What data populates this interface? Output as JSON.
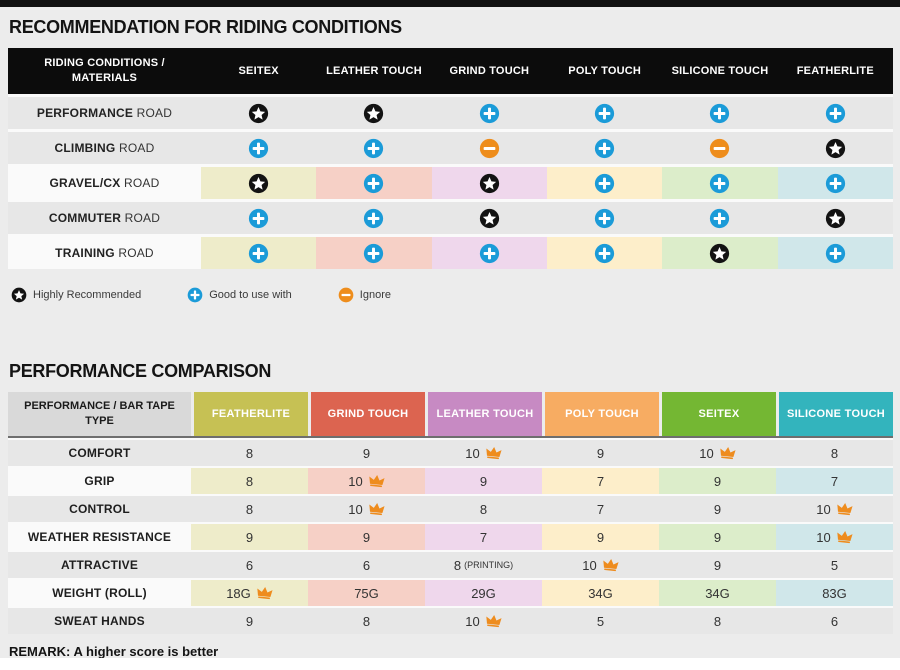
{
  "remark": "REMARK: A higher score is better",
  "icon_colors": {
    "star": "#131313",
    "plus": "#1b9bd8",
    "minus": "#ee8d1c",
    "crown": "#ee8c1e"
  },
  "legend": [
    {
      "icon": "star",
      "label": "Highly Recommended"
    },
    {
      "icon": "plus",
      "label": "Good to use with"
    },
    {
      "icon": "minus",
      "label": "Ignore"
    }
  ],
  "recommendation": {
    "title": "RECOMMENDATION FOR RIDING CONDITIONS",
    "header_label": "RIDING CONDITIONS / MATERIALS",
    "columns": [
      {
        "name": "SEITEX",
        "tint": "#eeecca"
      },
      {
        "name": "LEATHER TOUCH",
        "tint": "#f6d0c6"
      },
      {
        "name": "GRIND TOUCH",
        "tint": "#efd7ec"
      },
      {
        "name": "POLY TOUCH",
        "tint": "#fdeeca"
      },
      {
        "name": "SILICONE TOUCH",
        "tint": "#dcedca"
      },
      {
        "name": "FEATHERLITE",
        "tint": "#d0e7ea"
      }
    ],
    "rows": [
      {
        "condition": "PERFORMANCE",
        "suffix": "ROAD",
        "tinted": false,
        "cells": [
          "star",
          "star",
          "plus",
          "plus",
          "plus",
          "plus"
        ]
      },
      {
        "condition": "CLIMBING",
        "suffix": "ROAD",
        "tinted": false,
        "cells": [
          "plus",
          "plus",
          "minus",
          "plus",
          "minus",
          "star"
        ]
      },
      {
        "condition": "GRAVEL/CX",
        "suffix": "ROAD",
        "tinted": true,
        "cells": [
          "star",
          "plus",
          "star",
          "plus",
          "plus",
          "plus"
        ]
      },
      {
        "condition": "COMMUTER",
        "suffix": "ROAD",
        "tinted": false,
        "cells": [
          "plus",
          "plus",
          "star",
          "plus",
          "plus",
          "star"
        ]
      },
      {
        "condition": "TRAINING",
        "suffix": "ROAD",
        "tinted": true,
        "cells": [
          "plus",
          "plus",
          "plus",
          "plus",
          "star",
          "plus"
        ]
      }
    ]
  },
  "comparison": {
    "title": "PERFORMANCE COMPARISON",
    "header_label": "PERFORMANCE / BAR TAPE TYPE",
    "columns": [
      {
        "name": "FEATHERLITE",
        "color": "#c6c154",
        "tint": "#eeecca"
      },
      {
        "name": "GRIND TOUCH",
        "color": "#dc6450",
        "tint": "#f6d0c6"
      },
      {
        "name": "LEATHER TOUCH",
        "color": "#c78ac3",
        "tint": "#efd7ec"
      },
      {
        "name": "POLY TOUCH",
        "color": "#f7ac62",
        "tint": "#fdeeca"
      },
      {
        "name": "SEITEX",
        "color": "#74b733",
        "tint": "#dcedca"
      },
      {
        "name": "SILICONE TOUCH",
        "color": "#33b4bd",
        "tint": "#d0e7ea"
      }
    ],
    "rows": [
      {
        "label": "COMFORT",
        "tinted": false,
        "cells": [
          {
            "value": "8"
          },
          {
            "value": "9"
          },
          {
            "value": "10",
            "crown": true
          },
          {
            "value": "9"
          },
          {
            "value": "10",
            "crown": true
          },
          {
            "value": "8"
          }
        ]
      },
      {
        "label": "GRIP",
        "tinted": true,
        "cells": [
          {
            "value": "8"
          },
          {
            "value": "10",
            "crown": true
          },
          {
            "value": "9"
          },
          {
            "value": "7"
          },
          {
            "value": "9"
          },
          {
            "value": "7"
          }
        ]
      },
      {
        "label": "CONTROL",
        "tinted": false,
        "cells": [
          {
            "value": "8"
          },
          {
            "value": "10",
            "crown": true
          },
          {
            "value": "8"
          },
          {
            "value": "7"
          },
          {
            "value": "9"
          },
          {
            "value": "10",
            "crown": true
          }
        ]
      },
      {
        "label": "WEATHER RESISTANCE",
        "tinted": true,
        "cells": [
          {
            "value": "9"
          },
          {
            "value": "9"
          },
          {
            "value": "7"
          },
          {
            "value": "9"
          },
          {
            "value": "9"
          },
          {
            "value": "10",
            "crown": true
          }
        ]
      },
      {
        "label": "ATTRACTIVE",
        "tinted": false,
        "cells": [
          {
            "value": "6"
          },
          {
            "value": "6"
          },
          {
            "value": "8",
            "note": "(PRINTING)"
          },
          {
            "value": "10",
            "crown": true
          },
          {
            "value": "9"
          },
          {
            "value": "5"
          }
        ]
      },
      {
        "label": "WEIGHT (ROLL)",
        "tinted": true,
        "cells": [
          {
            "value": "18G",
            "crown": true
          },
          {
            "value": "75G"
          },
          {
            "value": "29G"
          },
          {
            "value": "34G"
          },
          {
            "value": "34G"
          },
          {
            "value": "83G"
          }
        ]
      },
      {
        "label": "SWEAT HANDS",
        "tinted": false,
        "cells": [
          {
            "value": "9"
          },
          {
            "value": "8"
          },
          {
            "value": "10",
            "crown": true
          },
          {
            "value": "5"
          },
          {
            "value": "8"
          },
          {
            "value": "6"
          }
        ]
      }
    ]
  }
}
